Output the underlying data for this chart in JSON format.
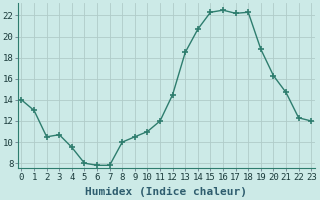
{
  "x": [
    0,
    1,
    2,
    3,
    4,
    5,
    6,
    7,
    8,
    9,
    10,
    11,
    12,
    13,
    14,
    15,
    16,
    17,
    18,
    19,
    20,
    21,
    22,
    23
  ],
  "y": [
    14,
    13,
    10.5,
    10.7,
    9.5,
    8,
    7.8,
    7.8,
    10,
    10.5,
    11,
    12,
    14.5,
    18.5,
    20.7,
    22.3,
    22.5,
    22.2,
    22.3,
    18.8,
    16.3,
    14.7,
    12.3,
    12
  ],
  "line_color": "#2e7d6e",
  "marker": "+",
  "marker_size": 5,
  "marker_linewidth": 1.2,
  "bg_color": "#cceae7",
  "grid_color": "#b0ccc9",
  "xlabel": "Humidex (Indice chaleur)",
  "xlabel_fontsize": 8,
  "ylabel_ticks": [
    8,
    10,
    12,
    14,
    16,
    18,
    20,
    22
  ],
  "xtick_labels": [
    "0",
    "1",
    "2",
    "3",
    "4",
    "5",
    "6",
    "7",
    "8",
    "9",
    "10",
    "11",
    "12",
    "13",
    "14",
    "15",
    "16",
    "17",
    "18",
    "19",
    "20",
    "21",
    "22",
    "23"
  ],
  "ylim": [
    7.5,
    23.2
  ],
  "xlim": [
    -0.3,
    23.3
  ],
  "tick_fontsize": 6.5,
  "linewidth": 1.0
}
